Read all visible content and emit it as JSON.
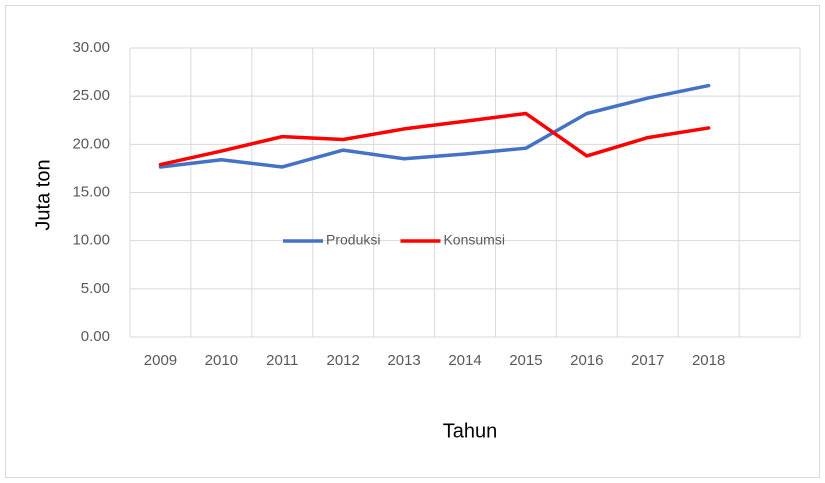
{
  "chart_data": {
    "type": "line",
    "x_label": "Tahun",
    "y_label": "Juta ton",
    "categories": [
      "2009",
      "2010",
      "2011",
      "2012",
      "2013",
      "2014",
      "2015",
      "2016",
      "2017",
      "2018",
      null
    ],
    "series": [
      {
        "name": "Produksi",
        "color": "#4472c4",
        "values": [
          17.65,
          18.4,
          17.65,
          19.4,
          18.5,
          19.0,
          19.6,
          23.2,
          24.8,
          26.1,
          null
        ]
      },
      {
        "name": "Konsumsi",
        "color": "#ff0000",
        "values": [
          17.9,
          19.3,
          20.8,
          20.5,
          21.6,
          22.4,
          23.2,
          18.8,
          20.7,
          21.7,
          null
        ]
      }
    ],
    "ylim": [
      0,
      30
    ],
    "yticks": [
      {
        "value": 0,
        "label": "0.00"
      },
      {
        "value": 5,
        "label": "5.00"
      },
      {
        "value": 10,
        "label": "10.00"
      },
      {
        "value": 15,
        "label": "15.00"
      },
      {
        "value": 20,
        "label": "20.00"
      },
      {
        "value": 25,
        "label": "25.00"
      },
      {
        "value": 30,
        "label": "30.00"
      }
    ],
    "grid": true
  }
}
